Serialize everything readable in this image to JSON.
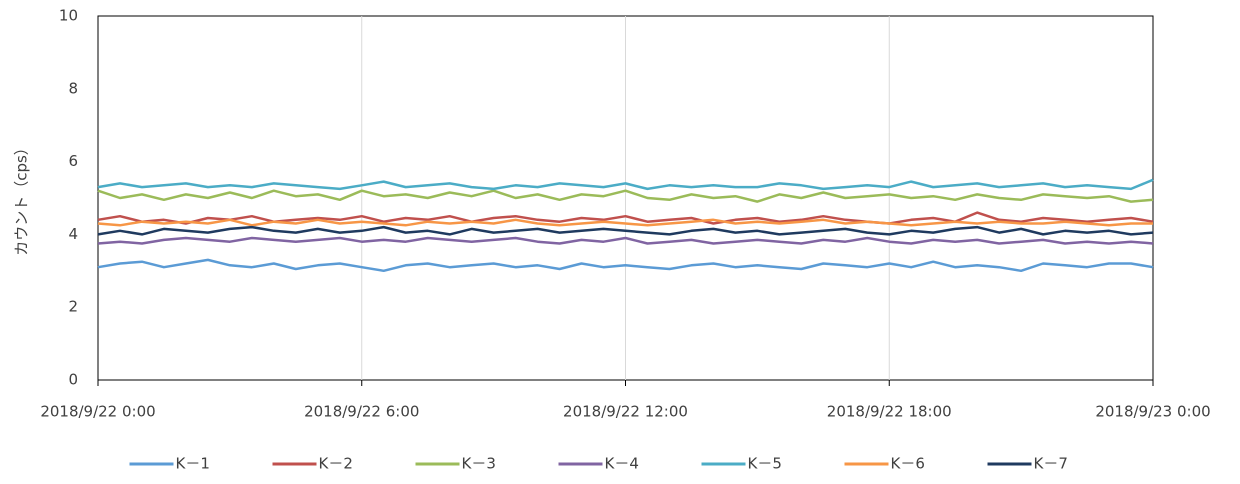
{
  "chart_data": {
    "type": "line",
    "y_label": "カウント（cps）",
    "x": [
      "2018/9/22 0:00",
      "2018/9/22 0:30",
      "2018/9/22 1:00",
      "2018/9/22 1:30",
      "2018/9/22 2:00",
      "2018/9/22 2:30",
      "2018/9/22 3:00",
      "2018/9/22 3:30",
      "2018/9/22 4:00",
      "2018/9/22 4:30",
      "2018/9/22 5:00",
      "2018/9/22 5:30",
      "2018/9/22 6:00",
      "2018/9/22 6:30",
      "2018/9/22 7:00",
      "2018/9/22 7:30",
      "2018/9/22 8:00",
      "2018/9/22 8:30",
      "2018/9/22 9:00",
      "2018/9/22 9:30",
      "2018/9/22 10:00",
      "2018/9/22 10:30",
      "2018/9/22 11:00",
      "2018/9/22 11:30",
      "2018/9/22 12:00",
      "2018/9/22 12:30",
      "2018/9/22 13:00",
      "2018/9/22 13:30",
      "2018/9/22 14:00",
      "2018/9/22 14:30",
      "2018/9/22 15:00",
      "2018/9/22 15:30",
      "2018/9/22 16:00",
      "2018/9/22 16:30",
      "2018/9/22 17:00",
      "2018/9/22 17:30",
      "2018/9/22 18:00",
      "2018/9/22 18:30",
      "2018/9/22 19:00",
      "2018/9/22 19:30",
      "2018/9/22 20:00",
      "2018/9/22 20:30",
      "2018/9/22 21:00",
      "2018/9/22 21:30",
      "2018/9/22 22:00",
      "2018/9/22 22:30",
      "2018/9/22 23:00",
      "2018/9/22 23:30",
      "2018/9/23 0:00"
    ],
    "series": [
      {
        "name": "K－1",
        "color": "#5b9bd5",
        "values": [
          3.1,
          3.2,
          3.25,
          3.1,
          3.2,
          3.3,
          3.15,
          3.1,
          3.2,
          3.05,
          3.15,
          3.2,
          3.1,
          3.0,
          3.15,
          3.2,
          3.1,
          3.15,
          3.2,
          3.1,
          3.15,
          3.05,
          3.2,
          3.1,
          3.15,
          3.1,
          3.05,
          3.15,
          3.2,
          3.1,
          3.15,
          3.1,
          3.05,
          3.2,
          3.15,
          3.1,
          3.2,
          3.1,
          3.25,
          3.1,
          3.15,
          3.1,
          3.0,
          3.2,
          3.15,
          3.1,
          3.2,
          3.2,
          3.1
        ]
      },
      {
        "name": "K－2",
        "color": "#c0504d",
        "values": [
          4.4,
          4.5,
          4.35,
          4.4,
          4.3,
          4.45,
          4.4,
          4.5,
          4.35,
          4.4,
          4.45,
          4.4,
          4.5,
          4.35,
          4.45,
          4.4,
          4.5,
          4.35,
          4.45,
          4.5,
          4.4,
          4.35,
          4.45,
          4.4,
          4.5,
          4.35,
          4.4,
          4.45,
          4.3,
          4.4,
          4.45,
          4.35,
          4.4,
          4.5,
          4.4,
          4.35,
          4.3,
          4.4,
          4.45,
          4.35,
          4.6,
          4.4,
          4.35,
          4.45,
          4.4,
          4.35,
          4.4,
          4.45,
          4.35
        ]
      },
      {
        "name": "K－3",
        "color": "#9bbb59",
        "values": [
          5.2,
          5.0,
          5.1,
          4.95,
          5.1,
          5.0,
          5.15,
          5.0,
          5.2,
          5.05,
          5.1,
          4.95,
          5.2,
          5.05,
          5.1,
          5.0,
          5.15,
          5.05,
          5.2,
          5.0,
          5.1,
          4.95,
          5.1,
          5.05,
          5.2,
          5.0,
          4.95,
          5.1,
          5.0,
          5.05,
          4.9,
          5.1,
          5.0,
          5.15,
          5.0,
          5.05,
          5.1,
          5.0,
          5.05,
          4.95,
          5.1,
          5.0,
          4.95,
          5.1,
          5.05,
          5.0,
          5.05,
          4.9,
          4.95
        ]
      },
      {
        "name": "K－4",
        "color": "#8064a2",
        "values": [
          3.75,
          3.8,
          3.75,
          3.85,
          3.9,
          3.85,
          3.8,
          3.9,
          3.85,
          3.8,
          3.85,
          3.9,
          3.8,
          3.85,
          3.8,
          3.9,
          3.85,
          3.8,
          3.85,
          3.9,
          3.8,
          3.75,
          3.85,
          3.8,
          3.9,
          3.75,
          3.8,
          3.85,
          3.75,
          3.8,
          3.85,
          3.8,
          3.75,
          3.85,
          3.8,
          3.9,
          3.8,
          3.75,
          3.85,
          3.8,
          3.85,
          3.75,
          3.8,
          3.85,
          3.75,
          3.8,
          3.75,
          3.8,
          3.75
        ]
      },
      {
        "name": "K－5",
        "color": "#4bacc6",
        "values": [
          5.3,
          5.4,
          5.3,
          5.35,
          5.4,
          5.3,
          5.35,
          5.3,
          5.4,
          5.35,
          5.3,
          5.25,
          5.35,
          5.45,
          5.3,
          5.35,
          5.4,
          5.3,
          5.25,
          5.35,
          5.3,
          5.4,
          5.35,
          5.3,
          5.4,
          5.25,
          5.35,
          5.3,
          5.35,
          5.3,
          5.3,
          5.4,
          5.35,
          5.25,
          5.3,
          5.35,
          5.3,
          5.45,
          5.3,
          5.35,
          5.4,
          5.3,
          5.35,
          5.4,
          5.3,
          5.35,
          5.3,
          5.25,
          5.5
        ]
      },
      {
        "name": "K－6",
        "color": "#f79646",
        "values": [
          4.3,
          4.25,
          4.35,
          4.3,
          4.35,
          4.3,
          4.4,
          4.25,
          4.35,
          4.3,
          4.4,
          4.3,
          4.35,
          4.3,
          4.25,
          4.35,
          4.3,
          4.35,
          4.3,
          4.4,
          4.3,
          4.25,
          4.3,
          4.35,
          4.3,
          4.25,
          4.3,
          4.35,
          4.4,
          4.3,
          4.35,
          4.3,
          4.35,
          4.4,
          4.3,
          4.35,
          4.3,
          4.25,
          4.3,
          4.35,
          4.3,
          4.35,
          4.3,
          4.3,
          4.35,
          4.3,
          4.25,
          4.3,
          4.3
        ]
      },
      {
        "name": "K－7",
        "color": "#1f3a5f",
        "values": [
          4.0,
          4.1,
          4.0,
          4.15,
          4.1,
          4.05,
          4.15,
          4.2,
          4.1,
          4.05,
          4.15,
          4.05,
          4.1,
          4.2,
          4.05,
          4.1,
          4.0,
          4.15,
          4.05,
          4.1,
          4.15,
          4.05,
          4.1,
          4.15,
          4.1,
          4.05,
          4.0,
          4.1,
          4.15,
          4.05,
          4.1,
          4.0,
          4.05,
          4.1,
          4.15,
          4.05,
          4.0,
          4.1,
          4.05,
          4.15,
          4.2,
          4.05,
          4.15,
          4.0,
          4.1,
          4.05,
          4.1,
          4.0,
          4.05
        ]
      }
    ],
    "xlim": [
      "2018/9/22 0:00",
      "2018/9/23 0:00"
    ],
    "xticks": [
      "2018/9/22 0:00",
      "2018/9/22 6:00",
      "2018/9/22 12:00",
      "2018/9/22 18:00",
      "2018/9/23 0:00"
    ],
    "ylim": [
      0,
      10
    ],
    "yticks": [
      0,
      2,
      4,
      6,
      8,
      10
    ],
    "x_grid": true,
    "legend": "bottom"
  }
}
